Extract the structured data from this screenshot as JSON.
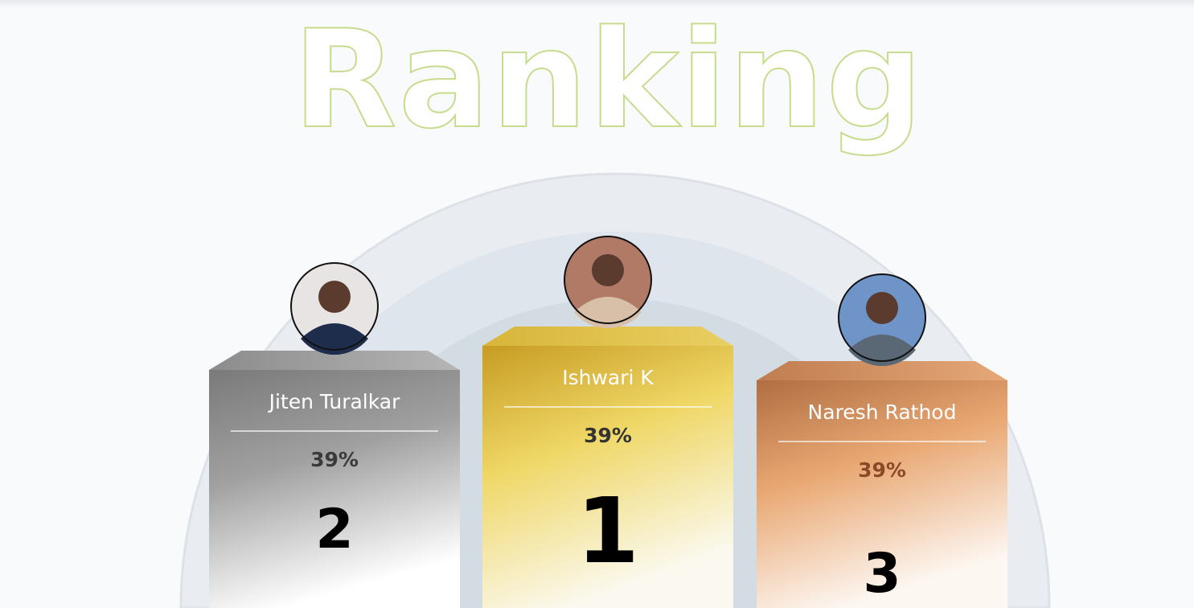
{
  "title": "Ranking",
  "podium": [
    {
      "name": "Jiten Turalkar",
      "score": "39%",
      "rank": 2
    },
    {
      "name": "Ishwari K",
      "score": "39%",
      "rank": 1
    },
    {
      "name": "Naresh Rathod",
      "score": "39%",
      "rank": 3
    }
  ]
}
